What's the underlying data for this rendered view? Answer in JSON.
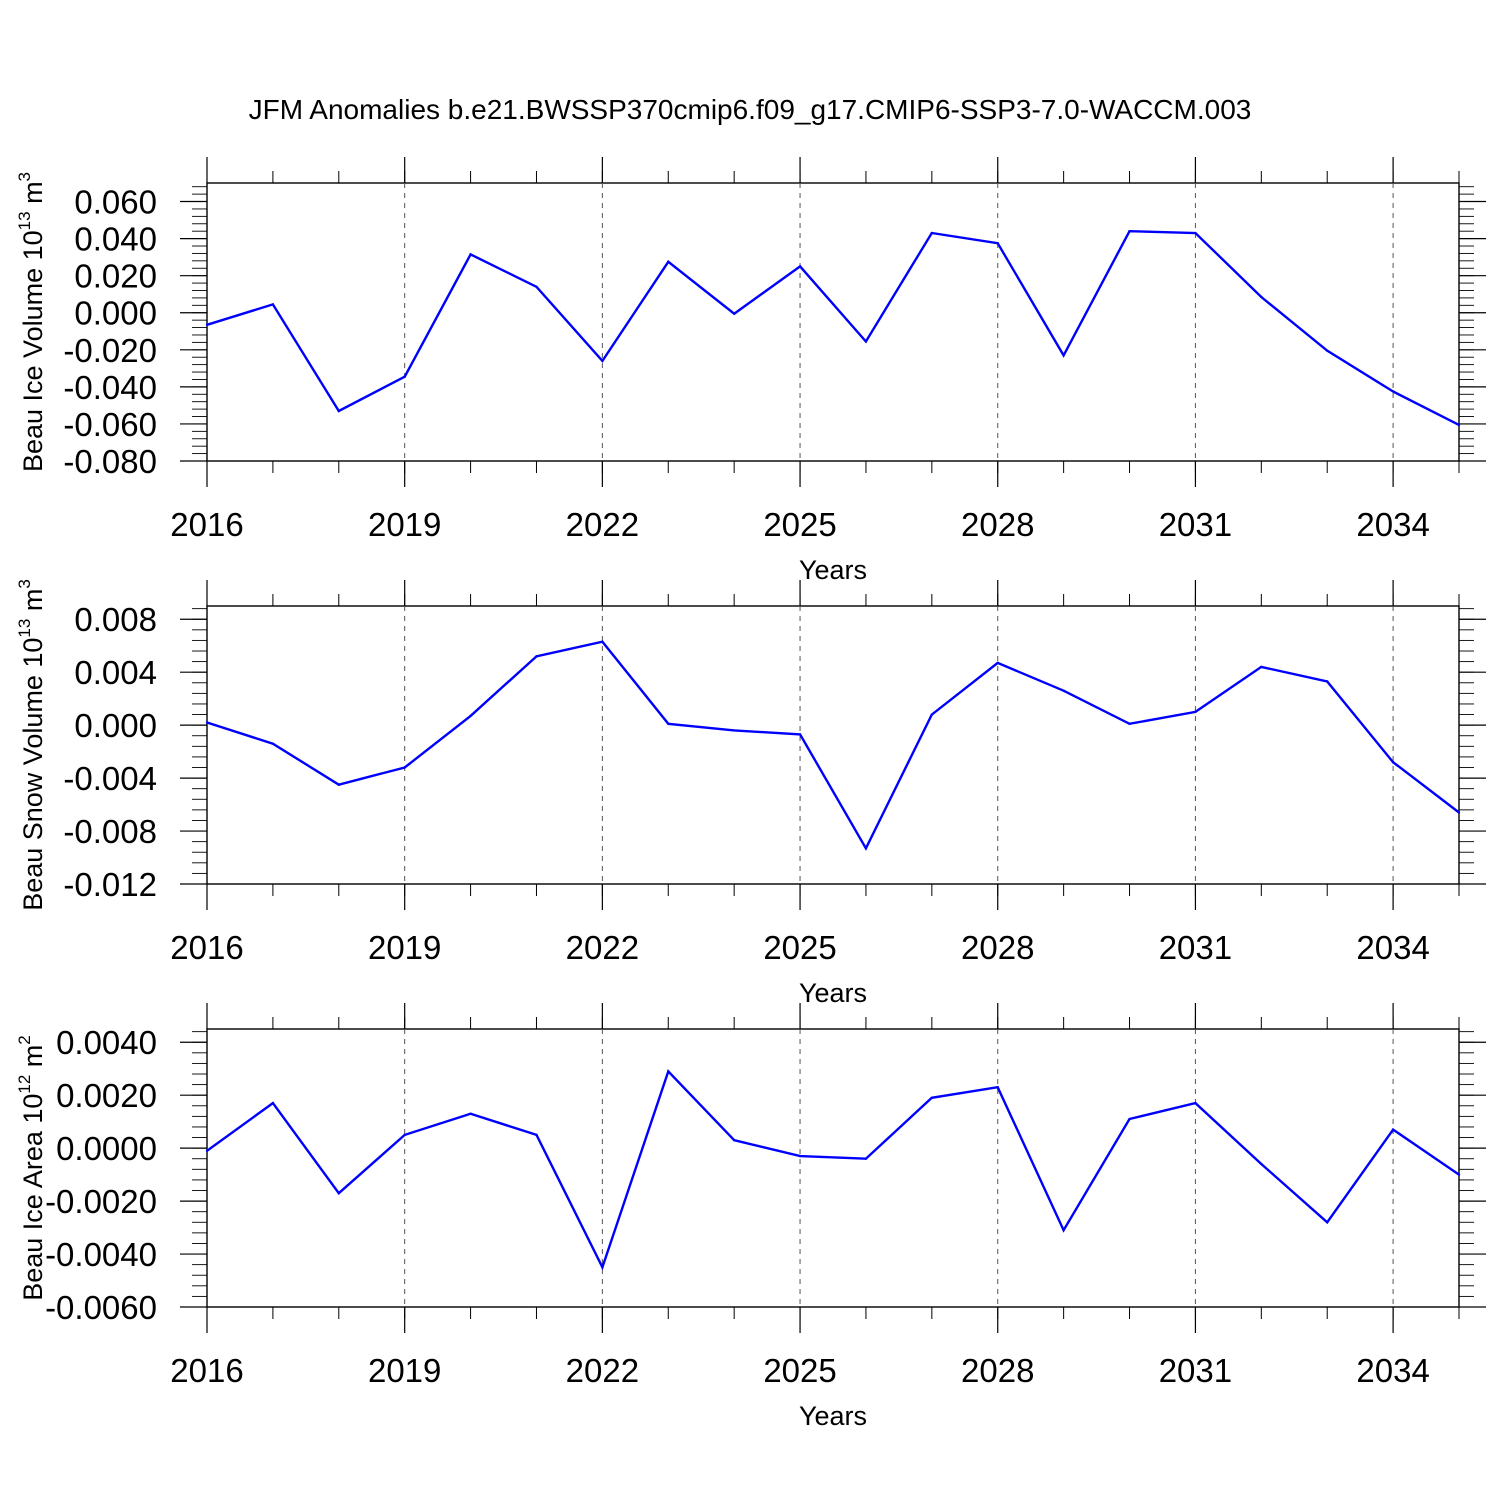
{
  "title": "JFM Anomalies b.e21.BWSSP370cmip6.f09_g17.CMIP6-SSP3-7.0-WACCM.003",
  "colors": {
    "line": "#0000ff",
    "axis": "#000000",
    "grid": "#555555"
  },
  "chart_data": [
    {
      "type": "line",
      "ylabel": "Beau Ice Volume 10",
      "ylabel_exp": "13",
      "ylabel_unit": " m",
      "ylabel_unit_exp": "3",
      "xlabel": "Years",
      "xlim": [
        2016,
        2035
      ],
      "ylim": [
        -0.08,
        0.07
      ],
      "x_ticks": [
        "2016",
        "2019",
        "2022",
        "2025",
        "2028",
        "2031",
        "2034"
      ],
      "y_ticks": [
        "0.060",
        "0.040",
        "0.020",
        "0.000",
        "-0.020",
        "-0.040",
        "-0.060",
        "-0.080"
      ],
      "x": [
        2016,
        2017,
        2018,
        2019,
        2020,
        2021,
        2022,
        2023,
        2024,
        2025,
        2026,
        2027,
        2028,
        2029,
        2030,
        2031,
        2032,
        2033,
        2034,
        2035
      ],
      "series": [
        {
          "name": "Beau Ice Volume",
          "values": [
            -0.0065,
            0.0045,
            -0.053,
            -0.0345,
            0.0315,
            0.014,
            -0.026,
            0.0275,
            -0.0005,
            0.025,
            -0.0155,
            0.043,
            0.0375,
            -0.023,
            0.044,
            0.043,
            0.0085,
            -0.0205,
            -0.0425,
            -0.0605
          ]
        }
      ]
    },
    {
      "type": "line",
      "ylabel": "Beau Snow Volume 10",
      "ylabel_exp": "13",
      "ylabel_unit": " m",
      "ylabel_unit_exp": "3",
      "xlabel": "Years",
      "xlim": [
        2016,
        2035
      ],
      "ylim": [
        -0.012,
        0.009
      ],
      "x_ticks": [
        "2016",
        "2019",
        "2022",
        "2025",
        "2028",
        "2031",
        "2034"
      ],
      "y_ticks": [
        "0.008",
        "0.004",
        "0.000",
        "-0.004",
        "-0.008",
        "-0.012"
      ],
      "x": [
        2016,
        2017,
        2018,
        2019,
        2020,
        2021,
        2022,
        2023,
        2024,
        2025,
        2026,
        2027,
        2028,
        2029,
        2030,
        2031,
        2032,
        2033,
        2034,
        2035
      ],
      "series": [
        {
          "name": "Beau Snow Volume",
          "values": [
            0.0002,
            -0.0014,
            -0.0045,
            -0.0032,
            0.0007,
            0.0052,
            0.0063,
            0.0001,
            -0.0004,
            -0.0007,
            -0.0093,
            0.0008,
            0.0047,
            0.0026,
            0.0001,
            0.001,
            0.0044,
            0.0033,
            -0.0028,
            -0.0066
          ]
        }
      ]
    },
    {
      "type": "line",
      "ylabel": "Beau Ice Area 10",
      "ylabel_exp": "12",
      "ylabel_unit": " m",
      "ylabel_unit_exp": "2",
      "xlabel": "Years",
      "xlim": [
        2016,
        2035
      ],
      "ylim": [
        -0.006,
        0.0045
      ],
      "x_ticks": [
        "2016",
        "2019",
        "2022",
        "2025",
        "2028",
        "2031",
        "2034"
      ],
      "y_ticks": [
        "0.0040",
        "0.0020",
        "0.0000",
        "-0.0020",
        "-0.0040",
        "-0.0060"
      ],
      "x": [
        2016,
        2017,
        2018,
        2019,
        2020,
        2021,
        2022,
        2023,
        2024,
        2025,
        2026,
        2027,
        2028,
        2029,
        2030,
        2031,
        2032,
        2033,
        2034,
        2035
      ],
      "series": [
        {
          "name": "Beau Ice Area",
          "values": [
            -0.0001,
            0.0017,
            -0.0017,
            0.0005,
            0.0013,
            0.0005,
            -0.0045,
            0.0029,
            0.0003,
            -0.0003,
            -0.0004,
            0.0019,
            0.0023,
            -0.0031,
            0.0011,
            0.0017,
            -0.0006,
            -0.0028,
            0.0007,
            -0.001
          ]
        }
      ]
    }
  ]
}
